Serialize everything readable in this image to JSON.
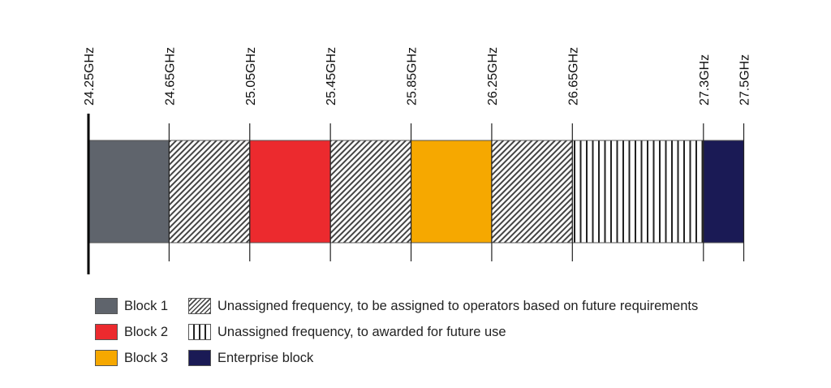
{
  "chart_data": {
    "type": "frequency-band-allocation",
    "unit": "GHz",
    "range": [
      24.25,
      27.5
    ],
    "boundaries": [
      {
        "value": 24.25,
        "label": "24.25GHz"
      },
      {
        "value": 24.65,
        "label": "24.65GHz"
      },
      {
        "value": 25.05,
        "label": "25.05GHz"
      },
      {
        "value": 25.45,
        "label": "25.45GHz"
      },
      {
        "value": 25.85,
        "label": "25.85GHz"
      },
      {
        "value": 26.25,
        "label": "26.25GHz"
      },
      {
        "value": 26.65,
        "label": "26.65GHz"
      },
      {
        "value": 27.3,
        "label": "27.3GHz"
      },
      {
        "value": 27.5,
        "label": "27.5GHz"
      }
    ],
    "segments": [
      {
        "from": 24.25,
        "to": 24.65,
        "category": "block1"
      },
      {
        "from": 24.65,
        "to": 25.05,
        "category": "unassigned_future_requirements"
      },
      {
        "from": 25.05,
        "to": 25.45,
        "category": "block2"
      },
      {
        "from": 25.45,
        "to": 25.85,
        "category": "unassigned_future_requirements"
      },
      {
        "from": 25.85,
        "to": 26.25,
        "category": "block3"
      },
      {
        "from": 26.25,
        "to": 26.65,
        "category": "unassigned_future_requirements"
      },
      {
        "from": 26.65,
        "to": 27.3,
        "category": "unassigned_future_use"
      },
      {
        "from": 27.3,
        "to": 27.5,
        "category": "enterprise"
      }
    ],
    "categories": {
      "block1": {
        "fill": "solid",
        "color": "#5f646c"
      },
      "block2": {
        "fill": "solid",
        "color": "#ec2a2e"
      },
      "block3": {
        "fill": "solid",
        "color": "#f6a800"
      },
      "enterprise": {
        "fill": "solid",
        "color": "#1a1a55"
      },
      "unassigned_future_requirements": {
        "fill": "diagonal-hatch",
        "color": "#333333"
      },
      "unassigned_future_use": {
        "fill": "vertical-stripes",
        "color": "#222222"
      }
    }
  },
  "legend": {
    "items": [
      {
        "category": "block1",
        "label": "Block 1"
      },
      {
        "category": "block2",
        "label": "Block 2"
      },
      {
        "category": "block3",
        "label": "Block 3"
      },
      {
        "category": "unassigned_future_requirements",
        "label": "Unassigned frequency, to be assigned to operators based on future requirements"
      },
      {
        "category": "unassigned_future_use",
        "label": "Unassigned frequency, to awarded for future use"
      },
      {
        "category": "enterprise",
        "label": "Enterprise block"
      }
    ]
  }
}
